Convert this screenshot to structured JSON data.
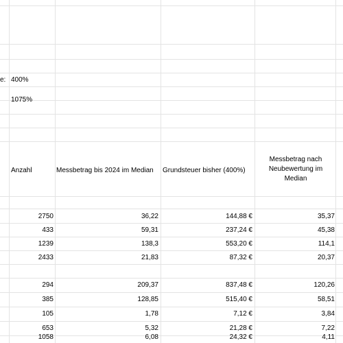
{
  "params": {
    "row1_label_tail": "e:",
    "row1_value": "400%",
    "row2_value": "1075%"
  },
  "headers": {
    "anzahl": "Anzahl",
    "messbetrag": "Messbetrag bis 2024 im Median",
    "grundsteuer": "Grundsteuer bisher (400%)",
    "neubewertung": "Messbetrag nach Neubewertung im Median"
  },
  "group1": [
    {
      "anzahl": "2750",
      "messbetrag": "36,22",
      "grundsteuer": "144,88 €",
      "neu": "35,37"
    },
    {
      "anzahl": "433",
      "messbetrag": "59,31",
      "grundsteuer": "237,24 €",
      "neu": "45,38"
    },
    {
      "anzahl": "1239",
      "messbetrag": "138,3",
      "grundsteuer": "553,20 €",
      "neu": "114,1"
    },
    {
      "anzahl": "2433",
      "messbetrag": "21,83",
      "grundsteuer": "87,32 €",
      "neu": "20,37"
    }
  ],
  "group2": [
    {
      "anzahl": "294",
      "messbetrag": "209,37",
      "grundsteuer": "837,48 €",
      "neu": "120,26"
    },
    {
      "anzahl": "385",
      "messbetrag": "128,85",
      "grundsteuer": "515,40 €",
      "neu": "58,51"
    },
    {
      "anzahl": "105",
      "messbetrag": "1,78",
      "grundsteuer": "7,12 €",
      "neu": "3,84"
    },
    {
      "anzahl": "653",
      "messbetrag": "5,32",
      "grundsteuer": "21,28 €",
      "neu": "7,22"
    },
    {
      "anzahl": "1058",
      "messbetrag": "6,08",
      "grundsteuer": "24,32 €",
      "neu": "4,11"
    }
  ]
}
